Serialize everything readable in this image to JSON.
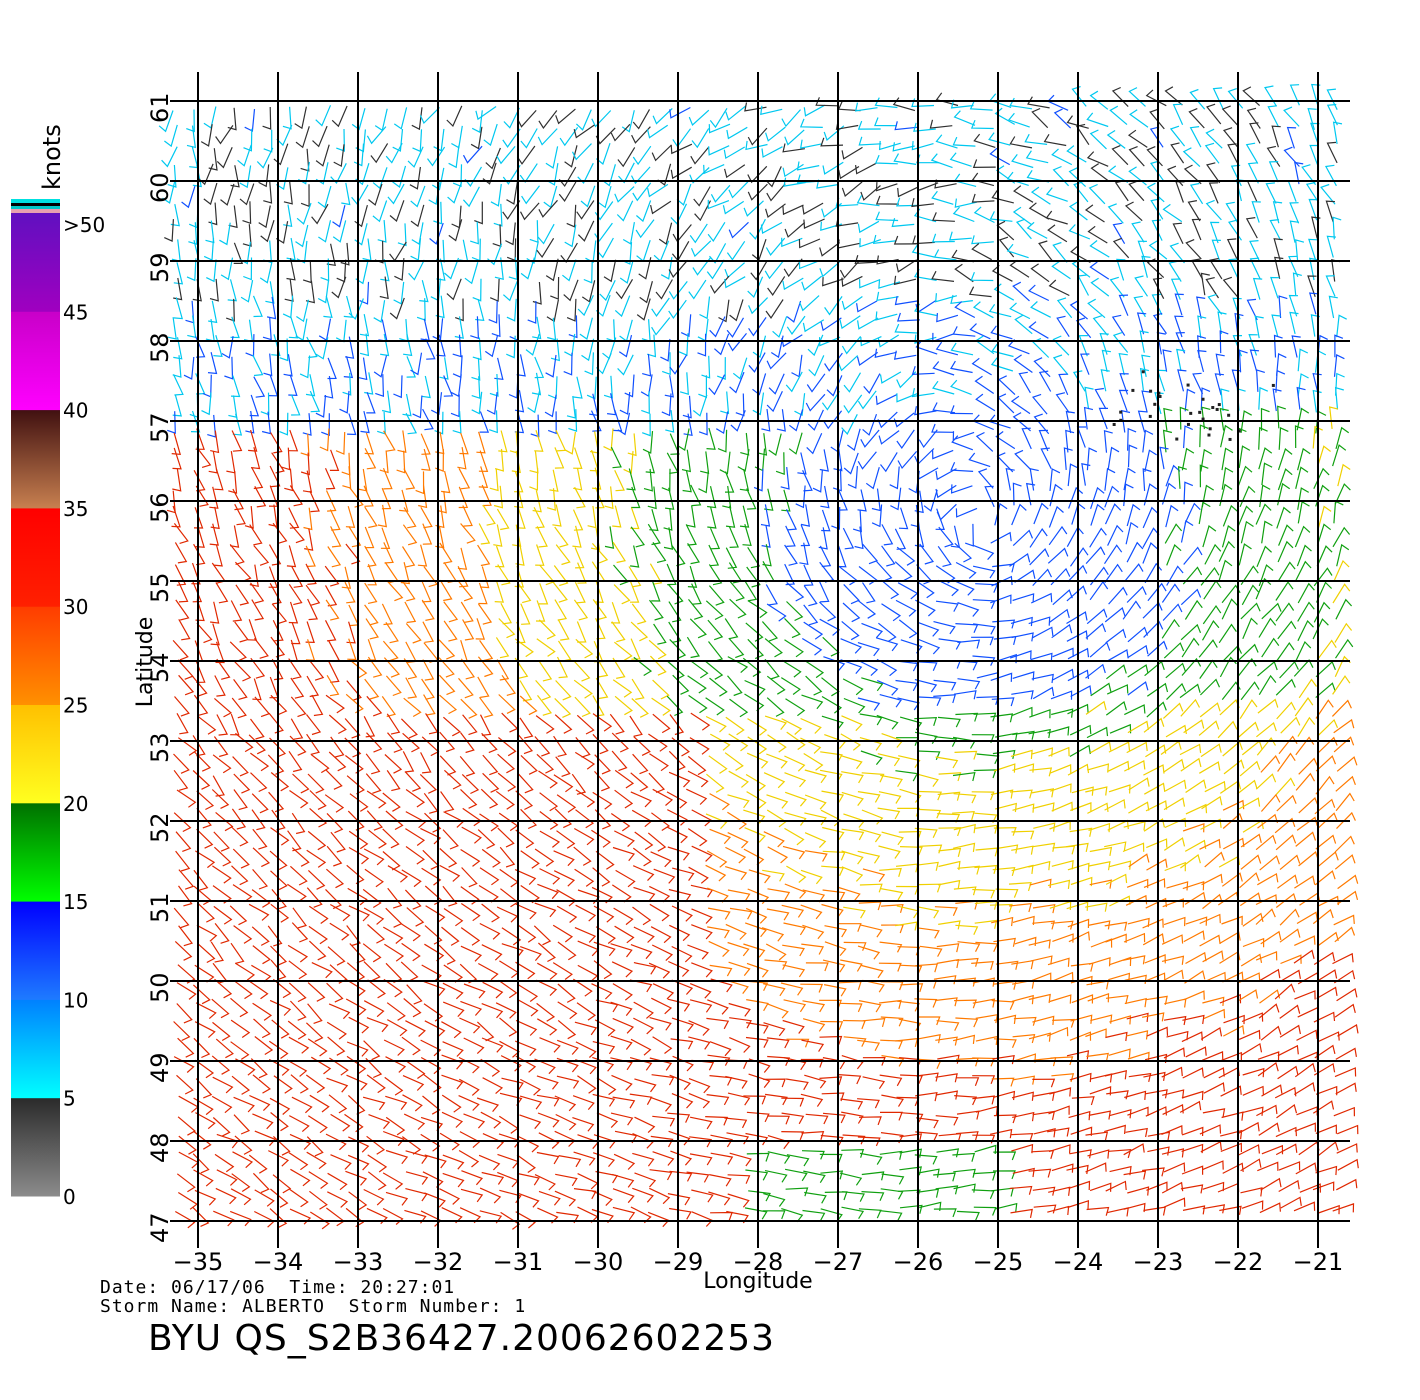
{
  "map": {
    "units_label": "knots",
    "x_label": "Longitude",
    "y_label": "Latitude",
    "lon_ticks": [
      "−35",
      "−34",
      "−33",
      "−32",
      "−31",
      "−30",
      "−29",
      "−28",
      "−27",
      "−26",
      "−25",
      "−24",
      "−23",
      "−22",
      "−21"
    ],
    "lat_ticks": [
      "47",
      "48",
      "49",
      "50",
      "51",
      "52",
      "53",
      "54",
      "55",
      "56",
      "57",
      "58",
      "59",
      "60",
      "61"
    ],
    "lon_range": [
      -35,
      -21
    ],
    "lat_range": [
      47,
      61
    ],
    "grid": true,
    "legend": {
      "placement": "left",
      "tick_labels": [
        ">50",
        "45",
        "40",
        "35",
        "30",
        "25",
        "20",
        "15",
        "10",
        "5",
        "0"
      ],
      "bands": [
        {
          "from": 0,
          "to": 5,
          "top": "#2a2a2a",
          "bottom": "#8c8c8c"
        },
        {
          "from": 5,
          "to": 10,
          "top": "#0080ff",
          "bottom": "#00ffff"
        },
        {
          "from": 10,
          "to": 15,
          "top": "#0000ff",
          "bottom": "#1e7bff"
        },
        {
          "from": 15,
          "to": 20,
          "top": "#007000",
          "bottom": "#00ff00"
        },
        {
          "from": 20,
          "to": 25,
          "top": "#ffc000",
          "bottom": "#ffff20"
        },
        {
          "from": 25,
          "to": 30,
          "top": "#ff3c00",
          "bottom": "#ff9000"
        },
        {
          "from": 30,
          "to": 35,
          "top": "#ff0000",
          "bottom": "#ff2000"
        },
        {
          "from": 35,
          "to": 40,
          "top": "#401010",
          "bottom": "#c88050"
        },
        {
          "from": 40,
          "to": 45,
          "top": "#c800c8",
          "bottom": "#ff00ff"
        },
        {
          "from": 45,
          "to": 50,
          "top": "#6010c0",
          "bottom": "#a000c0"
        }
      ]
    },
    "storm_center_lon": -25.2,
    "storm_center_lat": 55.7,
    "rain_flag_region": {
      "lon": [
        -23.6,
        -21.5
      ],
      "lat": [
        56.6,
        57.7
      ]
    }
  },
  "footer": {
    "date_label": "Date:",
    "date_value": "06/17/06",
    "time_label": "Time:",
    "time_value": "20:27:01",
    "storm_name_label": "Storm Name:",
    "storm_name_value": "ALBERTO",
    "storm_number_label": "Storm Number:",
    "storm_number_value": "1",
    "product_id": "BYU QS_S2B36427.20062602253"
  }
}
